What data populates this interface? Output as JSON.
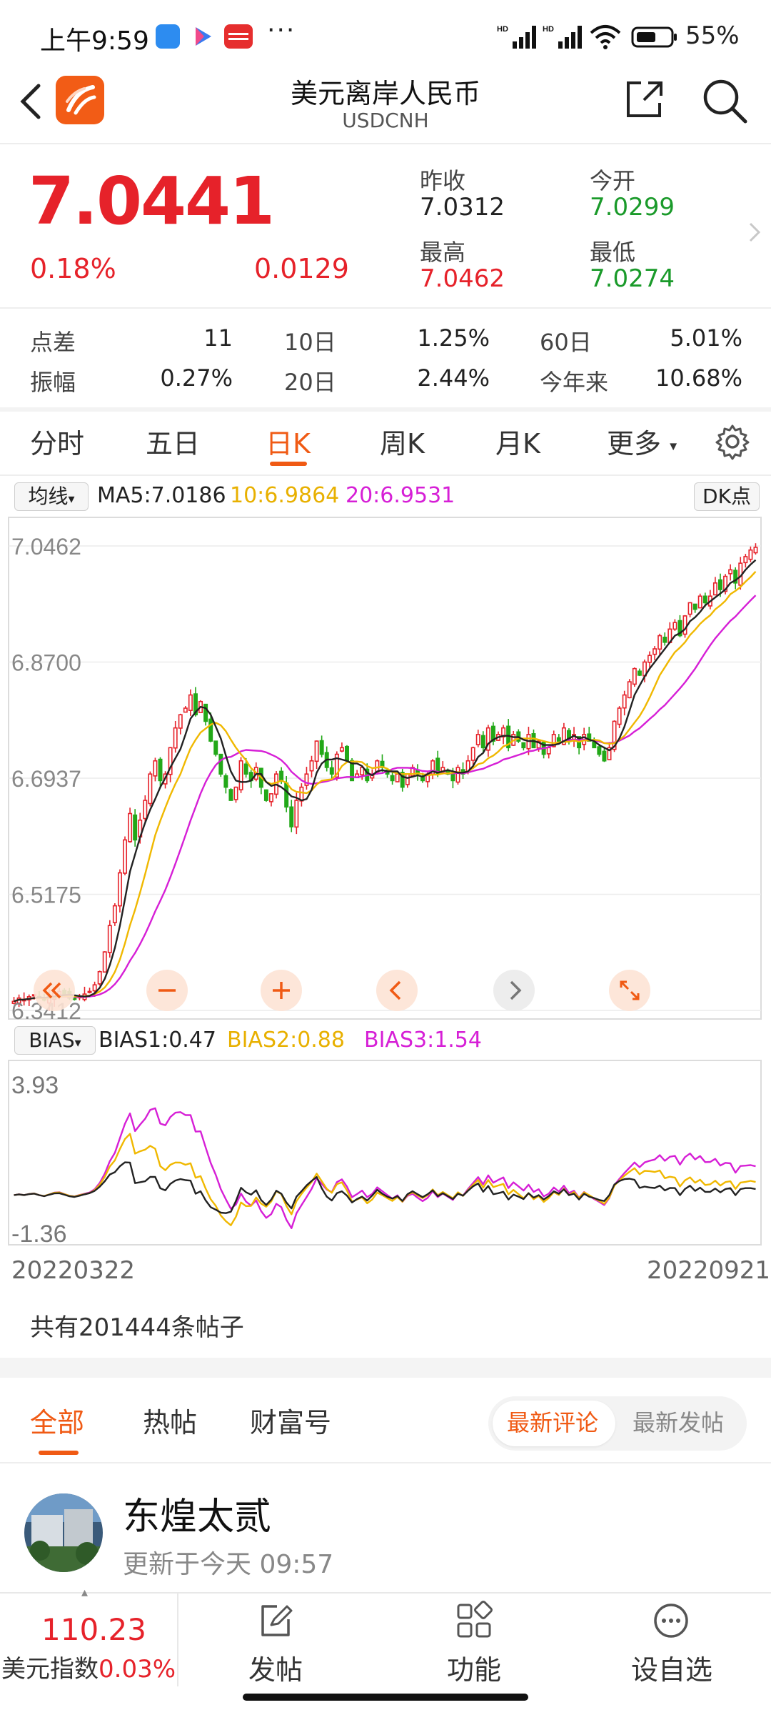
{
  "status_bar": {
    "time": "上午9:59",
    "dots": "···",
    "battery": "55%"
  },
  "header": {
    "title": "美元离岸人民币",
    "subtitle": "USDCNH"
  },
  "quote": {
    "price": "7.0441",
    "change_pct": "0.18%",
    "change": "0.0129",
    "prev_close_label": "昨收",
    "prev_close": "7.0312",
    "open_label": "今开",
    "open": "7.0299",
    "high_label": "最高",
    "high": "7.0462",
    "low_label": "最低",
    "low": "7.0274"
  },
  "stats": {
    "spread_label": "点差",
    "spread": "11",
    "d10_label": "10日",
    "d10": "1.25%",
    "d60_label": "60日",
    "d60": "5.01%",
    "amp_label": "振幅",
    "amp": "0.27%",
    "d20_label": "20日",
    "d20": "2.44%",
    "ytd_label": "今年来",
    "ytd": "10.68%"
  },
  "tabs": [
    "分时",
    "五日",
    "日K",
    "周K",
    "月K",
    "更多"
  ],
  "active_tab": "日K",
  "chart_header": {
    "ma_selector": "均线",
    "ma5": "MA5:7.0186",
    "ma10": "10:6.9864",
    "ma20": "20:6.9531",
    "dk_button": "DK点"
  },
  "bias_header": {
    "selector": "BIAS",
    "bias1": "BIAS1:0.47",
    "bias2": "BIAS2:0.88",
    "bias3": "BIAS3:1.54"
  },
  "colors": {
    "up": "#e6222a",
    "down": "#22a818",
    "ma5": "#222222",
    "ma10": "#f0b800",
    "ma20": "#d61fd6",
    "accent": "#f05a14"
  },
  "chart_data": [
    {
      "type": "candlestick",
      "y_ticks": [
        "7.0462",
        "6.8700",
        "6.6937",
        "6.5175",
        "6.3412"
      ],
      "ylim": [
        6.3412,
        7.0462
      ],
      "x_range": [
        "20220322",
        "20220921"
      ],
      "series": [
        {
          "name": "MA5",
          "last": 7.0186
        },
        {
          "name": "10",
          "last": 6.9864
        },
        {
          "name": "20",
          "last": 6.9531
        }
      ],
      "close_trajectory": [
        6.355,
        6.36,
        6.358,
        6.362,
        6.365,
        6.36,
        6.357,
        6.362,
        6.368,
        6.37,
        6.365,
        6.36,
        6.358,
        6.362,
        6.366,
        6.37,
        6.38,
        6.4,
        6.43,
        6.47,
        6.5,
        6.55,
        6.6,
        6.64,
        6.6,
        6.63,
        6.66,
        6.7,
        6.72,
        6.69,
        6.7,
        6.74,
        6.77,
        6.79,
        6.8,
        6.82,
        6.79,
        6.81,
        6.78,
        6.75,
        6.73,
        6.7,
        6.68,
        6.66,
        6.68,
        6.72,
        6.7,
        6.69,
        6.71,
        6.68,
        6.66,
        6.67,
        6.7,
        6.69,
        6.65,
        6.62,
        6.66,
        6.68,
        6.7,
        6.72,
        6.75,
        6.73,
        6.71,
        6.7,
        6.73,
        6.74,
        6.72,
        6.69,
        6.7,
        6.71,
        6.69,
        6.7,
        6.72,
        6.71,
        6.7,
        6.69,
        6.7,
        6.68,
        6.7,
        6.71,
        6.7,
        6.69,
        6.7,
        6.72,
        6.7,
        6.71,
        6.7,
        6.69,
        6.71,
        6.7,
        6.72,
        6.74,
        6.76,
        6.74,
        6.77,
        6.75,
        6.76,
        6.77,
        6.74,
        6.76,
        6.75,
        6.74,
        6.76,
        6.74,
        6.75,
        6.73,
        6.74,
        6.76,
        6.75,
        6.77,
        6.75,
        6.76,
        6.74,
        6.76,
        6.75,
        6.74,
        6.73,
        6.72,
        6.74,
        6.78,
        6.8,
        6.82,
        6.84,
        6.86,
        6.85,
        6.87,
        6.88,
        6.89,
        6.91,
        6.9,
        6.92,
        6.93,
        6.91,
        6.94,
        6.96,
        6.95,
        6.97,
        6.96,
        6.97,
        6.99,
        6.98,
        7.0,
        7.01,
        6.99,
        7.02,
        7.03,
        7.04,
        7.0441
      ]
    },
    {
      "type": "line",
      "y_ticks": [
        "3.93",
        "-1.36"
      ],
      "ylim": [
        -1.36,
        3.93
      ],
      "series": [
        {
          "name": "BIAS1",
          "last": 0.47
        },
        {
          "name": "BIAS2",
          "last": 0.88
        },
        {
          "name": "BIAS3",
          "last": 1.54
        }
      ]
    }
  ],
  "x_start": "20220322",
  "x_end": "20220921",
  "post_count": "共有201444条帖子",
  "forum_tabs": [
    "全部",
    "热帖",
    "财富号"
  ],
  "forum_active": "全部",
  "sort_options": [
    "最新评论",
    "最新发帖"
  ],
  "sort_active": "最新评论",
  "post": {
    "author": "东煌太贰",
    "time": "更新于今天 09:57"
  },
  "bottom_nav": {
    "index_value": "110.23",
    "index_name": "美元指数",
    "index_change": "0.03%",
    "post_label": "发帖",
    "func_label": "功能",
    "watch_label": "设自选"
  }
}
